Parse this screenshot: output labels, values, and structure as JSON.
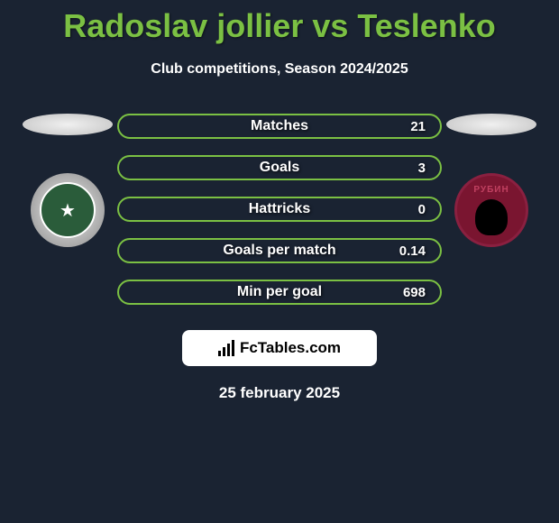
{
  "title": "Radoslav jollier vs Teslenko",
  "subtitle": "Club competitions, Season 2024/2025",
  "stats": [
    {
      "label": "Matches",
      "value": "21"
    },
    {
      "label": "Goals",
      "value": "3"
    },
    {
      "label": "Hattricks",
      "value": "0"
    },
    {
      "label": "Goals per match",
      "value": "0.14"
    },
    {
      "label": "Min per goal",
      "value": "698"
    }
  ],
  "brand": "FcTables.com",
  "date": "25 february 2025",
  "colors": {
    "background": "#1a2332",
    "accent": "#7bc043",
    "text": "#ffffff",
    "brandBg": "#ffffff",
    "brandText": "#000000"
  }
}
